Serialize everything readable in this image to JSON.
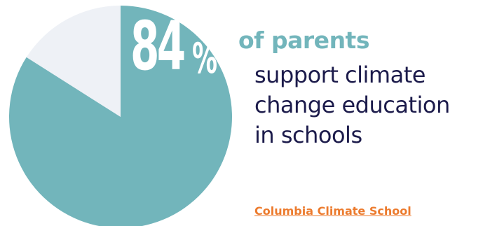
{
  "chart_data": {
    "type": "pie",
    "values": [
      84,
      16
    ],
    "colors": [
      "#72b5bb",
      "#eef1f6"
    ],
    "start_angle_deg": 0,
    "direction": "clockwise"
  },
  "headline": {
    "number": "84",
    "percent_sign": "%",
    "lead": "of parents",
    "lines": [
      "support climate",
      "change education",
      "in schools"
    ]
  },
  "source": {
    "label": "Columbia Climate School",
    "color": "#ec7b2e"
  },
  "colors": {
    "accent": "#72b5bb",
    "text": "#1c1b4b",
    "remainder": "#eef1f6"
  }
}
